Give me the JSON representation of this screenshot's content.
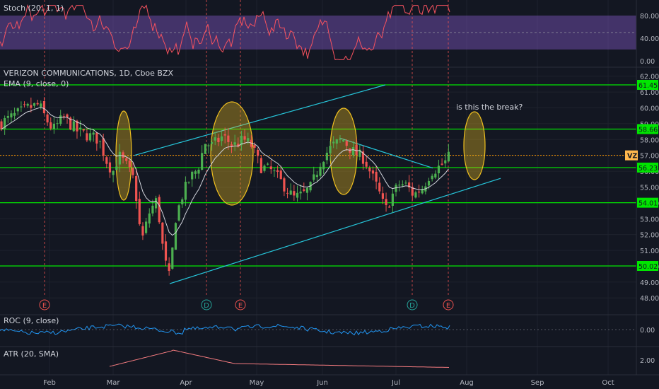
{
  "chart_data": [
    {
      "type": "line",
      "title": "Stoch (20, 1, 1)",
      "ylim": [
        -10,
        100
      ],
      "yticks": [
        0,
        40,
        80
      ],
      "ytick_labels": [
        "0.00",
        "40.00",
        "80.00"
      ],
      "band": [
        20,
        80
      ],
      "midline": 50,
      "colors": {
        "line": "#f7525f",
        "band": "#7e57c2"
      }
    },
    {
      "type": "candlestick",
      "title": "VERIZON COMMUNICATIONS, 1D, Cboe BZX",
      "subtitle": "EMA (9, close, 0)",
      "ylim": [
        47.3,
        62.4
      ],
      "yticks": [
        48,
        49,
        50,
        51,
        52,
        53,
        54,
        55,
        56,
        57,
        58,
        59,
        60,
        61,
        62
      ],
      "ytick_labels": [
        "48.00",
        "49.00",
        "50.00",
        "51.00",
        "52.00",
        "53.00",
        "54.00",
        "55.00",
        "56.00",
        "57.00",
        "58.00",
        "59.00",
        "60.00",
        "61.00",
        "62.00"
      ],
      "horizontal_levels": [
        {
          "value": 61.45,
          "label": "61.45"
        },
        {
          "value": 58.66,
          "label": "58.66"
        },
        {
          "value": 56.23,
          "label": "56.23"
        },
        {
          "value": 54.01,
          "label": "54.01"
        },
        {
          "value": 50.02,
          "label": "50.02"
        }
      ],
      "current_price": {
        "value": 57.0,
        "label": "VZ"
      },
      "annotation": "is this the break?",
      "earnings_markers": [
        "E",
        "D",
        "E",
        "D",
        "E"
      ],
      "trendlines": [
        {
          "from": [
            "Mar 10",
            57.0
          ],
          "to": [
            "May 25",
            61.5
          ]
        },
        {
          "from": [
            "Mar 28",
            48.9
          ],
          "to": [
            "Aug 1",
            55.5
          ]
        },
        {
          "from": [
            "Jun 12",
            58.1
          ],
          "to": [
            "Jul 20",
            56.2
          ]
        }
      ],
      "colors": {
        "up": "#26a69a",
        "candle_up": "#4caf50",
        "down": "#ef5350",
        "ema": "#d1d4dc",
        "levels": "#00e600",
        "trend": "#26c6da",
        "ellipse": "#f0c020",
        "price": "#ff9800"
      }
    },
    {
      "type": "line",
      "title": "ROC (9, close)",
      "yticks": [
        0
      ],
      "ytick_labels": [
        "0.00"
      ],
      "colors": {
        "line": "#2196f3"
      }
    },
    {
      "type": "line",
      "title": "ATR (20, SMA)",
      "yticks": [
        2
      ],
      "ytick_labels": [
        "2.00"
      ],
      "colors": {
        "line": "#f77c80"
      }
    }
  ],
  "x_axis": {
    "ticks": [
      "Feb",
      "Mar",
      "Apr",
      "May",
      "Jun",
      "Jul",
      "Aug",
      "Sep",
      "Oct"
    ]
  }
}
